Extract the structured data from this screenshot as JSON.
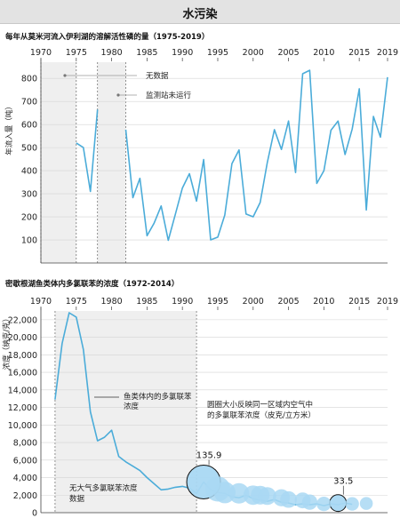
{
  "page": {
    "title": "水污染"
  },
  "colors": {
    "line": "#4bacd9",
    "bubble": "#a9d8f3",
    "shade": "#efefef",
    "grid": "#d4d4d4"
  },
  "chart_data": [
    {
      "type": "line",
      "title": "每年从莫米河流入伊利湖的溶解活性磷的量（1975-2019）",
      "ylabel": "年流入量（吨）",
      "xlabel": "",
      "xlim": [
        1970,
        2019
      ],
      "ylim": [
        0,
        870
      ],
      "x_ticks": [
        1970,
        1975,
        1980,
        1985,
        1990,
        1995,
        2000,
        2005,
        2010,
        2015,
        2019
      ],
      "y_ticks": [
        100,
        200,
        300,
        400,
        500,
        600,
        700,
        800
      ],
      "grid": "horizontal",
      "shaded_regions": [
        {
          "from": 1970,
          "to": 1975,
          "label": "无数据"
        },
        {
          "from": 1978,
          "to": 1982,
          "label": "监测站未运行"
        }
      ],
      "segments": [
        {
          "x": [
            1975,
            1976,
            1977,
            1978
          ],
          "y": [
            520,
            500,
            310,
            665
          ]
        },
        {
          "x": [
            1982,
            1983,
            1984,
            1985,
            1986,
            1987,
            1988,
            1989,
            1990,
            1991,
            1992,
            1993,
            1994,
            1995,
            1996,
            1997,
            1998,
            1999,
            2000,
            2001,
            2002,
            2003,
            2004,
            2005,
            2006,
            2007,
            2008,
            2009,
            2010,
            2011,
            2012,
            2013,
            2014,
            2015,
            2016,
            2017,
            2018,
            2019
          ],
          "y": [
            578,
            283,
            367,
            118,
            172,
            247,
            98,
            210,
            325,
            387,
            268,
            448,
            100,
            112,
            208,
            430,
            490,
            212,
            200,
            262,
            435,
            578,
            492,
            615,
            392,
            820,
            835,
            345,
            400,
            575,
            615,
            470,
            580,
            755,
            230,
            635,
            545,
            805
          ]
        }
      ]
    },
    {
      "type": "line",
      "title": "密歇根湖鱼类体内多氯联苯的浓度（1972-2014）",
      "ylabel": "浓度（纳克/克）",
      "xlabel": "",
      "xlim": [
        1970,
        2019
      ],
      "ylim": [
        0,
        23000
      ],
      "x_ticks": [
        1970,
        1975,
        1980,
        1985,
        1990,
        1995,
        2000,
        2005,
        2010,
        2015,
        2019
      ],
      "y_ticks": [
        0,
        2000,
        4000,
        6000,
        8000,
        10000,
        12000,
        14000,
        16000,
        18000,
        20000,
        22000
      ],
      "y_tick_labels": [
        "0",
        "2,000",
        "4,000",
        "6,000",
        "8,000",
        "10,000",
        "12,000",
        "14,000",
        "16,000",
        "18,000",
        "20,000",
        "22,000"
      ],
      "grid": "horizontal",
      "shaded_regions": [
        {
          "from": 1972,
          "to": 1992,
          "label": "无大气多氯联苯浓度数据"
        }
      ],
      "series": [
        {
          "x": [
            1972,
            1973,
            1974,
            1975,
            1976,
            1977,
            1978,
            1979,
            1980,
            1981,
            1982,
            1983,
            1984,
            1985,
            1986,
            1987,
            1988,
            1989,
            1990,
            1991,
            1992,
            1993,
            1994,
            1995,
            1996,
            1997,
            1998,
            1999,
            2000,
            2001,
            2002,
            2003,
            2004,
            2005,
            2006,
            2007,
            2008,
            2009,
            2010,
            2011,
            2012,
            2013,
            2014
          ],
          "y": [
            12900,
            19300,
            22800,
            22300,
            18600,
            11500,
            8200,
            8600,
            9400,
            6400,
            5800,
            5300,
            4800,
            4000,
            3300,
            2600,
            2700,
            2900,
            3000,
            2800,
            2200,
            3500,
            2600,
            2300,
            2200,
            1800,
            1700,
            2000,
            1600,
            1400,
            1300,
            1500,
            1200,
            1100,
            900,
            1000,
            900,
            1000,
            800,
            1000,
            900,
            1100,
            950
          ]
        }
      ],
      "bubbles": {
        "label": "圆圈大小反映同一区域内空气中的多氯联苯浓度（皮克/立方米）",
        "x": [
          1993,
          1995,
          1996,
          1998,
          2000,
          2001,
          2002,
          2004,
          2005,
          2007,
          2008,
          2010,
          2012,
          2014,
          2016
        ],
        "y": [
          3500,
          2700,
          2300,
          2200,
          2000,
          2000,
          1900,
          1700,
          1500,
          1400,
          1200,
          1000,
          1100,
          1000,
          1050
        ],
        "values": [
          135.9,
          75,
          55,
          50,
          45,
          42,
          38,
          35,
          33,
          30,
          28,
          25,
          33.5,
          22,
          20
        ],
        "labeled": [
          {
            "x": 1993,
            "value": "135.9"
          },
          {
            "x": 2012,
            "value": "33.5"
          }
        ]
      },
      "annotations": [
        {
          "text": "鱼类体内的多氯联苯浓度"
        }
      ]
    }
  ]
}
